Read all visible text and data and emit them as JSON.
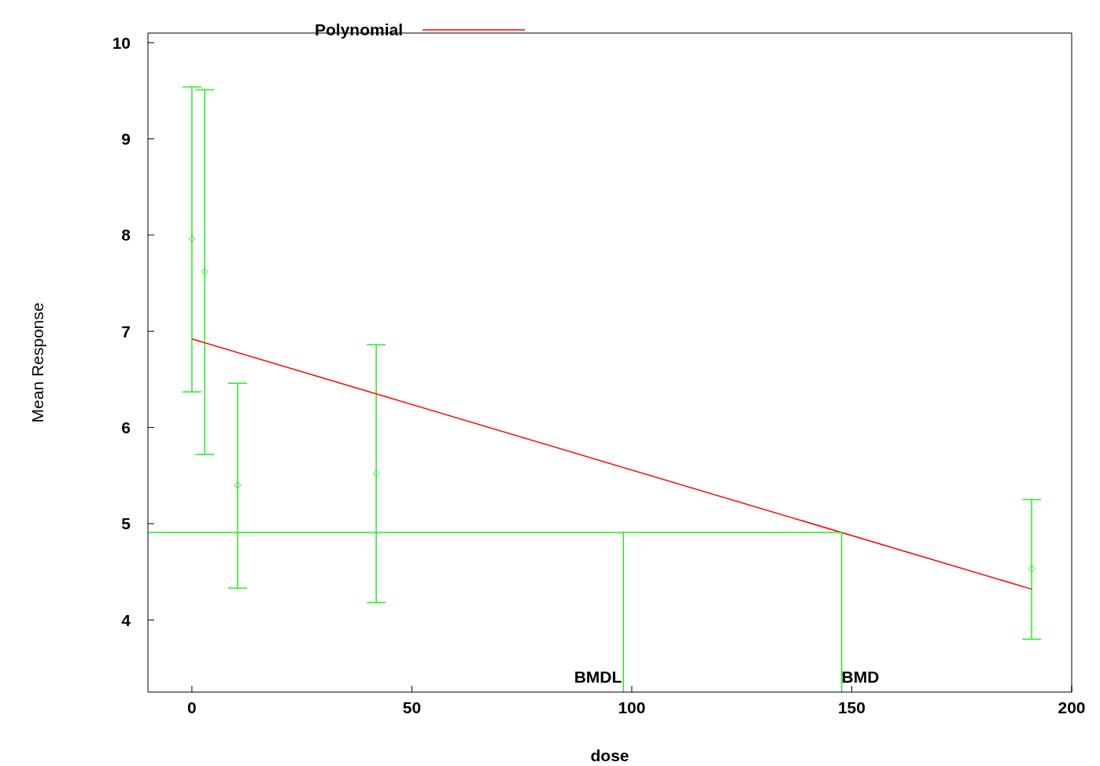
{
  "chart_data": {
    "type": "scatter",
    "xlabel": "dose",
    "ylabel": "Mean Response",
    "xlim": [
      -10,
      200
    ],
    "ylim": [
      3.25,
      10.1
    ],
    "xticks": [
      0,
      50,
      100,
      150,
      200
    ],
    "yticks": [
      4,
      5,
      6,
      7,
      8,
      9,
      10
    ],
    "legend": "top",
    "grid": false,
    "series": [
      {
        "color": "#22ee22",
        "marker": "diamond",
        "x": [
          0,
          2.9,
          10.4,
          41.9,
          190.9
        ],
        "values": [
          7.96,
          7.62,
          5.4,
          5.52,
          4.53
        ],
        "errors": [
          [
            6.37,
            9.54
          ],
          [
            5.72,
            9.51
          ],
          [
            4.33,
            6.46
          ],
          [
            4.18,
            6.86
          ],
          [
            3.8,
            5.25
          ]
        ]
      },
      {
        "type": "line",
        "marker": "none",
        "name": "Polynomial",
        "color": "#ff0000",
        "x": [
          0,
          190.9
        ],
        "values": [
          6.92,
          4.32
        ]
      },
      {
        "type": "line",
        "marker": "none",
        "color": "#22ee22",
        "x": [
          -10,
          147.7,
          147.7
        ],
        "values": [
          4.91,
          4.91,
          3.25
        ]
      },
      {
        "type": "line",
        "marker": "none",
        "color": "#22ee22",
        "x": [
          98.1,
          98.1
        ],
        "values": [
          4.91,
          3.25
        ]
      }
    ],
    "annotations": [
      {
        "text": "BMDL",
        "x": 98.1,
        "y": 3.25
      },
      {
        "text": "BMD",
        "x": 147.7,
        "y": 3.25
      }
    ]
  }
}
